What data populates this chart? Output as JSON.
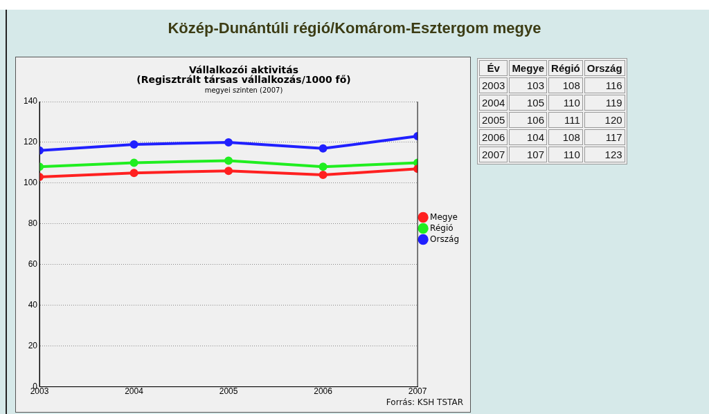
{
  "chart_data": [
    {
      "type": "line",
      "title": "Vállalkozói aktivitás\n(Regisztrált társas vállalkozás/1000 fő)",
      "subtitle": "megyei szinten (2007)",
      "x": [
        2003,
        2004,
        2005,
        2006,
        2007
      ],
      "xlim": [
        2003,
        2007
      ],
      "xticks": [
        2003,
        2004,
        2005,
        2006,
        2007
      ],
      "ylim": [
        0,
        140
      ],
      "yticks": [
        0,
        20,
        40,
        60,
        80,
        100,
        120,
        140
      ],
      "series": [
        {
          "name": "Megye",
          "color": "#ff2020",
          "values": [
            103,
            105,
            106,
            104,
            107
          ]
        },
        {
          "name": "Régió",
          "color": "#20ee20",
          "values": [
            108,
            110,
            111,
            108,
            110
          ]
        },
        {
          "name": "Ország",
          "color": "#2020ff",
          "values": [
            116,
            119,
            120,
            117,
            123
          ]
        }
      ],
      "grid": "y",
      "legend": "right",
      "marker": "circle",
      "line_style": "solid",
      "annotations": [
        "Közép-Dunántúli régió/Komárom-Esztergom megye",
        "Forrás: KSH TSTAR"
      ]
    },
    {
      "type": "heatmap",
      "ylabel": "Év",
      "categories": [
        "Megye",
        "Régió",
        "Ország"
      ],
      "y_categories": [
        "2003",
        "2004",
        "2005",
        "2006",
        "2007"
      ],
      "cells": [
        [
          103,
          108,
          116
        ],
        [
          105,
          110,
          119
        ],
        [
          106,
          111,
          120
        ],
        [
          104,
          108,
          117
        ],
        [
          107,
          110,
          123
        ]
      ],
      "data_labels": true
    }
  ]
}
